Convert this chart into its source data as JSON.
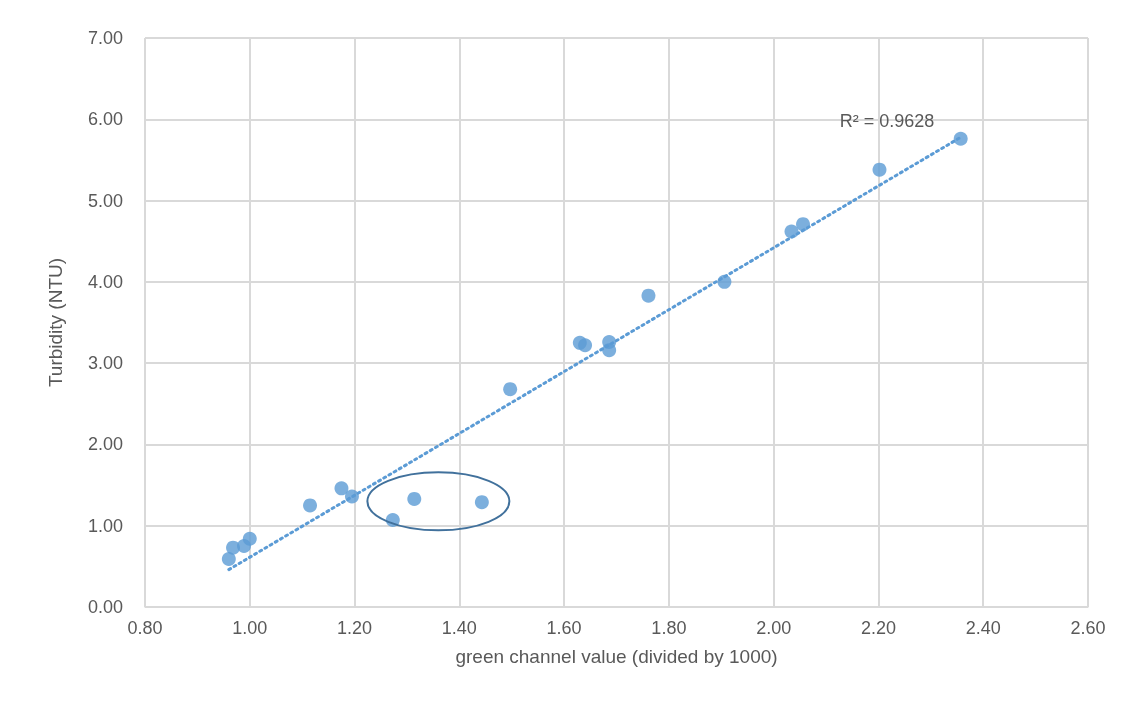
{
  "chart_data": {
    "type": "scatter",
    "xlabel": "green channel value (divided by 1000)",
    "ylabel": "Turbidity (NTU)",
    "annotations": [
      "R² = 0.9628"
    ],
    "series": [
      {
        "color": "#5b9bd5",
        "marker": "circle",
        "x": [
          0.96,
          0.968,
          0.989,
          1.0,
          1.115,
          1.175,
          1.195,
          1.273,
          1.314,
          1.443,
          1.497,
          1.63,
          1.64,
          1.686,
          1.686,
          1.761,
          1.906,
          2.034,
          2.056,
          2.202,
          2.357
        ],
        "values": [
          0.59,
          0.73,
          0.75,
          0.84,
          1.25,
          1.46,
          1.36,
          1.07,
          1.33,
          1.29,
          2.68,
          3.25,
          3.22,
          3.26,
          3.16,
          3.83,
          4.0,
          4.62,
          4.71,
          5.38,
          5.76
        ]
      },
      {
        "type": "line",
        "color": "#5b9bd5",
        "line_style": "dotted",
        "marker": "none",
        "x": [
          0.96,
          2.36
        ],
        "values": [
          0.46,
          5.79
        ]
      }
    ],
    "xlim": [
      0.8,
      2.6
    ],
    "xticks": [
      {
        "value": 0.8,
        "label": "0.80"
      },
      {
        "value": 1.0,
        "label": "1.00"
      },
      {
        "value": 1.2,
        "label": "1.20"
      },
      {
        "value": 1.4,
        "label": "1.40"
      },
      {
        "value": 1.6,
        "label": "1.60"
      },
      {
        "value": 1.8,
        "label": "1.80"
      },
      {
        "value": 2.0,
        "label": "2.00"
      },
      {
        "value": 2.2,
        "label": "2.20"
      },
      {
        "value": 2.4,
        "label": "2.40"
      },
      {
        "value": 2.6,
        "label": "2.60"
      }
    ],
    "ylim": [
      0,
      7
    ],
    "yticks": [
      {
        "value": 0,
        "label": "0.00"
      },
      {
        "value": 1,
        "label": "1.00"
      },
      {
        "value": 2,
        "label": "2.00"
      },
      {
        "value": 3,
        "label": "3.00"
      },
      {
        "value": 4,
        "label": "4.00"
      },
      {
        "value": 5,
        "label": "5.00"
      },
      {
        "value": 6,
        "label": "6.00"
      },
      {
        "value": 7,
        "label": "7.00"
      }
    ],
    "grid": true
  }
}
